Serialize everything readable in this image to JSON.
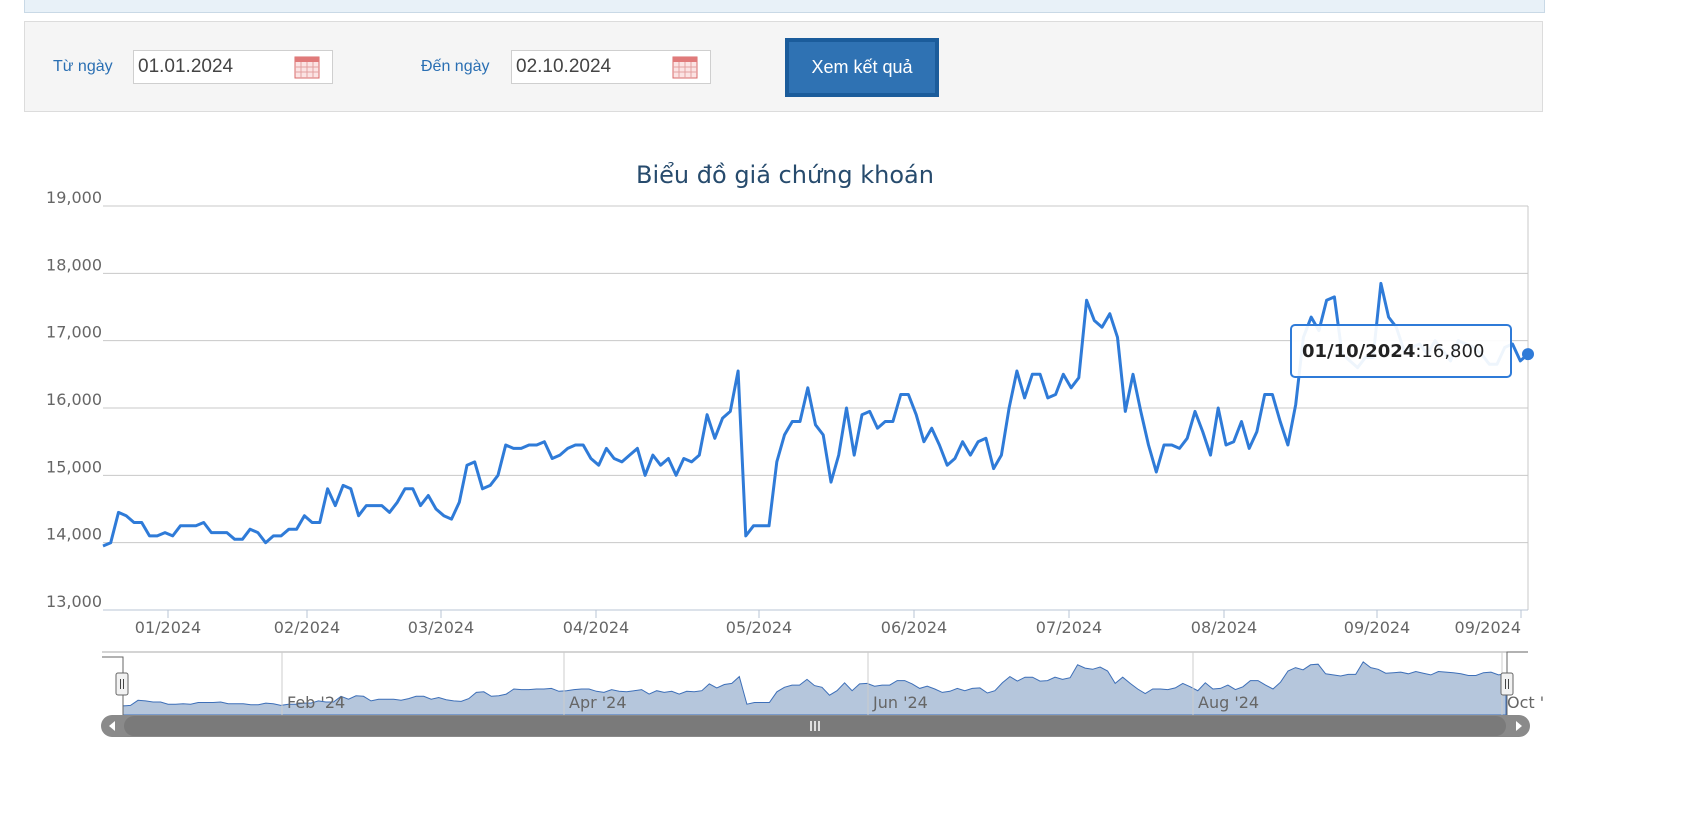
{
  "filters": {
    "from_label": "Từ ngày",
    "from_value": "01.01.2024",
    "to_label": "Đến ngày",
    "to_value": "02.10.2024",
    "submit_label": "Xem kết quả",
    "calendar_icon": "calendar-icon"
  },
  "colors": {
    "line": "#2f7bd8",
    "navigator_fill": "#b5c6dc",
    "button": "#2f72b3",
    "grid": "#c8c8c8",
    "title": "#274b6d"
  },
  "tooltip": {
    "date": "01/10/2024",
    "value": "16,800"
  },
  "navigator": {
    "labels": [
      "Feb '24",
      "Apr '24",
      "Jun '24",
      "Aug '24",
      "Oct '"
    ],
    "scroll_icon": "scrollbar-grip-icon"
  },
  "chart_data": {
    "type": "line",
    "title": "Biểu đồ giá chứng khoán",
    "xlabel": "",
    "ylabel": "",
    "ylim": [
      13000,
      19000
    ],
    "y_ticks": [
      "13,000",
      "14,000",
      "15,000",
      "16,000",
      "17,000",
      "18,000",
      "19,000"
    ],
    "x_ticks": [
      "01/2024",
      "02/2024",
      "03/2024",
      "04/2024",
      "05/2024",
      "06/2024",
      "07/2024",
      "08/2024",
      "09/2024",
      "09/2024"
    ],
    "grid": true,
    "legend": "none",
    "series": [
      {
        "values": [
          13950,
          14000,
          14450,
          14400,
          14300,
          14300,
          14100,
          14100,
          14150,
          14100,
          14250,
          14250,
          14250,
          14300,
          14150,
          14150,
          14150,
          14050,
          14050,
          14200,
          14150,
          14000,
          14100,
          14100,
          14200,
          14200,
          14400,
          14300,
          14300,
          14800,
          14550,
          14850,
          14800,
          14400,
          14550,
          14550,
          14550,
          14450,
          14600,
          14800,
          14800,
          14550,
          14700,
          14500,
          14400,
          14350,
          14600,
          15150,
          15200,
          14800,
          14850,
          15000,
          15450,
          15400,
          15400,
          15450,
          15450,
          15500,
          15250,
          15300,
          15400,
          15450,
          15450,
          15250,
          15150,
          15400,
          15250,
          15200,
          15300,
          15400,
          15000,
          15300,
          15150,
          15250,
          15000,
          15250,
          15200,
          15300,
          15900,
          15550,
          15850,
          15950,
          16550,
          14100,
          14250,
          14250,
          14250,
          15200,
          15600,
          15800,
          15800,
          16300,
          15750,
          15600,
          14900,
          15300,
          16000,
          15300,
          15900,
          15950,
          15700,
          15800,
          15800,
          16200,
          16200,
          15900,
          15500,
          15700,
          15450,
          15150,
          15250,
          15500,
          15300,
          15500,
          15550,
          15100,
          15300,
          16000,
          16550,
          16150,
          16500,
          16500,
          16150,
          16200,
          16500,
          16300,
          16450,
          17600,
          17300,
          17200,
          17400,
          17050,
          15950,
          16500,
          15950,
          15450,
          15050,
          15450,
          15450,
          15400,
          15550,
          15950,
          15650,
          15300,
          16000,
          15450,
          15500,
          15800,
          15400,
          15650,
          16200,
          16200,
          15800,
          15450,
          16050,
          17050,
          17350,
          17150,
          17600,
          17650,
          16800,
          16700,
          16600,
          16750,
          16750,
          17850,
          17350,
          17200,
          16850,
          16900,
          16950,
          16800,
          17000,
          16850,
          16700,
          17000,
          16950,
          16900,
          16800,
          16650,
          16650,
          16900,
          16950,
          16700,
          16800
        ]
      }
    ]
  }
}
